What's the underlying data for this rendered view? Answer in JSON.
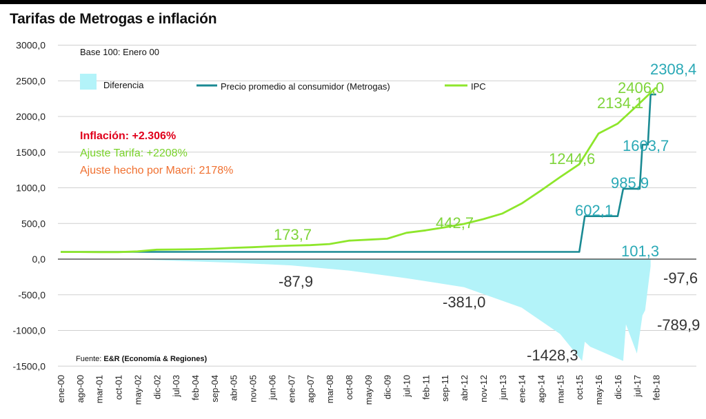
{
  "chart_data": {
    "type": "line",
    "title": "Tarifas de Metrogas e inflación",
    "subtitle": "Base 100: Enero 00",
    "source_label": "Fuente:",
    "source_name": "E&R (Economía & Regiones)",
    "ylim": [
      -1500,
      3000
    ],
    "yticks": [
      "3000,0",
      "2500,0",
      "2000,0",
      "1500,0",
      "1000,0",
      "500,0",
      "0,0",
      "-500,0",
      "-1000,0",
      "-1500,0"
    ],
    "ytick_values": [
      3000,
      2500,
      2000,
      1500,
      1000,
      500,
      0,
      -500,
      -1000,
      -1500
    ],
    "grid": true,
    "legend_position": "top",
    "x_labels": [
      "ene-00",
      "ago-00",
      "mar-01",
      "oct-01",
      "may-02",
      "dic-02",
      "jul-03",
      "feb-04",
      "sep-04",
      "abr-05",
      "nov-05",
      "jun-06",
      "ene-07",
      "ago-07",
      "mar-08",
      "oct-08",
      "may-09",
      "dic-09",
      "jul-10",
      "feb-11",
      "sep-11",
      "abr-12",
      "nov-12",
      "jun-13",
      "ene-14",
      "ago-14",
      "mar-15",
      "oct-15",
      "may-16",
      "dic-16",
      "jul-17",
      "feb-18"
    ],
    "legend": {
      "diferencia": "Diferencia",
      "metrogas": "Precio promedio al consumidor (Metrogas)",
      "ipc": "IPC"
    },
    "colors": {
      "metrogas": "#1a8a93",
      "ipc": "#8ee62b",
      "diferencia": "#b3f3f9",
      "inflacion_text": "#e0001b",
      "ajuste_tarifa_text": "#79d32a",
      "macri_text": "#f07030",
      "metrogas_label": "#2aa9b6",
      "ipc_label": "#7ed43a",
      "diff_label": "#333333"
    },
    "notes": {
      "inflacion": "Inflación: +2.306%",
      "ajuste_tarifa": "Ajuste Tarifa: +2208%",
      "macri": "Ajuste hecho por Macri: 2178%"
    },
    "series": [
      {
        "name": "IPC",
        "x": [
          0,
          7,
          14,
          21,
          28,
          35,
          42,
          49,
          56,
          63,
          70,
          77,
          84,
          91,
          98,
          105,
          112,
          119,
          126,
          133,
          140,
          147,
          154,
          161,
          168,
          175,
          182,
          189,
          196,
          203,
          210,
          217
        ],
        "values": [
          100,
          100,
          99,
          99,
          108,
          132,
          135,
          139,
          146,
          158,
          167,
          180,
          189,
          196,
          212,
          259,
          272,
          286,
          369,
          403,
          445,
          494,
          560,
          640,
          780,
          960,
          1150,
          1330,
          1760,
          1900,
          2150,
          2406
        ]
      },
      {
        "name": "Precio promedio al consumidor (Metrogas)",
        "x": [
          0,
          189,
          191,
          192,
          203,
          205,
          206,
          211,
          212,
          214,
          215,
          217
        ],
        "values": [
          101.3,
          101.3,
          602.1,
          602.1,
          602.1,
          985.9,
          985.9,
          985.9,
          1603.7,
          1603.7,
          2308.4,
          2308.4
        ]
      },
      {
        "name": "Diferencia",
        "x": [
          0,
          28,
          63,
          84,
          105,
          126,
          147,
          168,
          182,
          190,
          191,
          193,
          205,
          206,
          210,
          212,
          213,
          215
        ],
        "values": [
          0,
          -5,
          -50,
          -88,
          -160,
          -268,
          -393,
          -680,
          -1049,
          -1428,
          -1158,
          -1228,
          -1428,
          -914,
          -1324,
          -790,
          -718,
          -97.6
        ]
      }
    ],
    "annotations": {
      "ipc": [
        "173,7",
        "442,7",
        "1244,6",
        "2134,1",
        "2406,0"
      ],
      "metrogas": [
        "101,3",
        "602,1",
        "985,9",
        "1603,7",
        "2308,4"
      ],
      "diferencia": [
        "-87,9",
        "-381,0",
        "-1428,3",
        "-789,9",
        "-97,6"
      ]
    }
  }
}
